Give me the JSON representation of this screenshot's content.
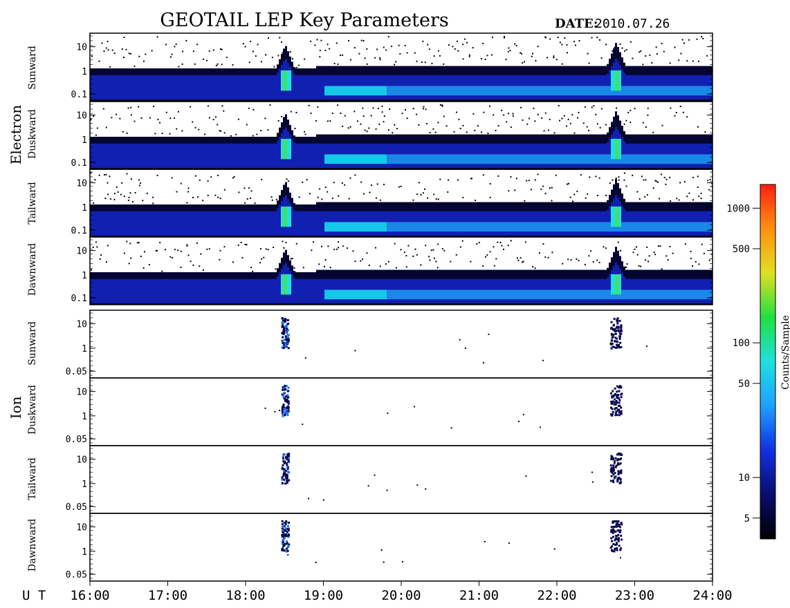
{
  "title": "GEOTAIL LEP Key Parameters",
  "date_label": "DATE:",
  "date_value": "2010.07.26",
  "ut_label": "U T",
  "colorbar": {
    "label": "Counts/Sample",
    "scale": "log",
    "range": [
      3.5,
      1500
    ],
    "ticks": [
      {
        "value": 1000,
        "label": "1000"
      },
      {
        "value": 500,
        "label": "500"
      },
      {
        "value": 100,
        "label": "100"
      },
      {
        "value": 50,
        "label": "50"
      },
      {
        "value": 10,
        "label": "10"
      },
      {
        "value": 5,
        "label": "5"
      }
    ],
    "colors": [
      "#000000",
      "#0b0b6e",
      "#1030e0",
      "#1ea0ff",
      "#1ee0e0",
      "#20e040",
      "#e0e020",
      "#ff9010",
      "#ff2010"
    ]
  },
  "chart_data": {
    "type": "heatmap",
    "x_axis": {
      "label": "U T",
      "range": [
        "16:00",
        "24:00"
      ],
      "ticks": [
        "16:00",
        "17:00",
        "18:00",
        "19:00",
        "20:00",
        "21:00",
        "22:00",
        "23:00",
        "24:00"
      ]
    },
    "groups": [
      {
        "name": "Electron",
        "y_scale": "log",
        "y_ticks": [
          "10",
          "1",
          "0.1"
        ],
        "panels": [
          "Sunward",
          "Duskward",
          "Tailward",
          "Dawnward"
        ]
      },
      {
        "name": "Ion",
        "y_scale": "log",
        "y_ticks": [
          "10",
          "1",
          "0.05"
        ],
        "panels": [
          "Sunward",
          "Duskward",
          "Tailward",
          "Dawnward"
        ]
      }
    ],
    "features": {
      "electron_peak_times": [
        "18:30",
        "22:45"
      ],
      "ion_burst_times": [
        "18:30",
        "22:45"
      ]
    }
  }
}
